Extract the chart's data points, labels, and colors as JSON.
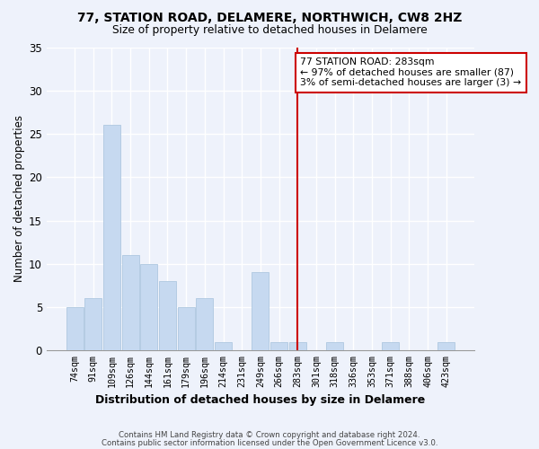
{
  "title1": "77, STATION ROAD, DELAMERE, NORTHWICH, CW8 2HZ",
  "title2": "Size of property relative to detached houses in Delamere",
  "xlabel": "Distribution of detached houses by size in Delamere",
  "ylabel": "Number of detached properties",
  "categories": [
    "74sqm",
    "91sqm",
    "109sqm",
    "126sqm",
    "144sqm",
    "161sqm",
    "179sqm",
    "196sqm",
    "214sqm",
    "231sqm",
    "249sqm",
    "266sqm",
    "283sqm",
    "301sqm",
    "318sqm",
    "336sqm",
    "353sqm",
    "371sqm",
    "388sqm",
    "406sqm",
    "423sqm"
  ],
  "values": [
    5,
    6,
    26,
    11,
    10,
    8,
    5,
    6,
    1,
    0,
    9,
    1,
    1,
    0,
    1,
    0,
    0,
    1,
    0,
    0,
    1
  ],
  "bar_color": "#c6d9f0",
  "bar_edge_color": "#aec8e0",
  "vline_color": "#cc0000",
  "annotation_text": "77 STATION ROAD: 283sqm\n← 97% of detached houses are smaller (87)\n3% of semi-detached houses are larger (3) →",
  "annotation_box_facecolor": "#ffffff",
  "annotation_box_edgecolor": "#cc0000",
  "ylim": [
    0,
    35
  ],
  "yticks": [
    0,
    5,
    10,
    15,
    20,
    25,
    30,
    35
  ],
  "background_color": "#eef2fb",
  "grid_color": "#ffffff",
  "footer1": "Contains HM Land Registry data © Crown copyright and database right 2024.",
  "footer2": "Contains public sector information licensed under the Open Government Licence v3.0."
}
